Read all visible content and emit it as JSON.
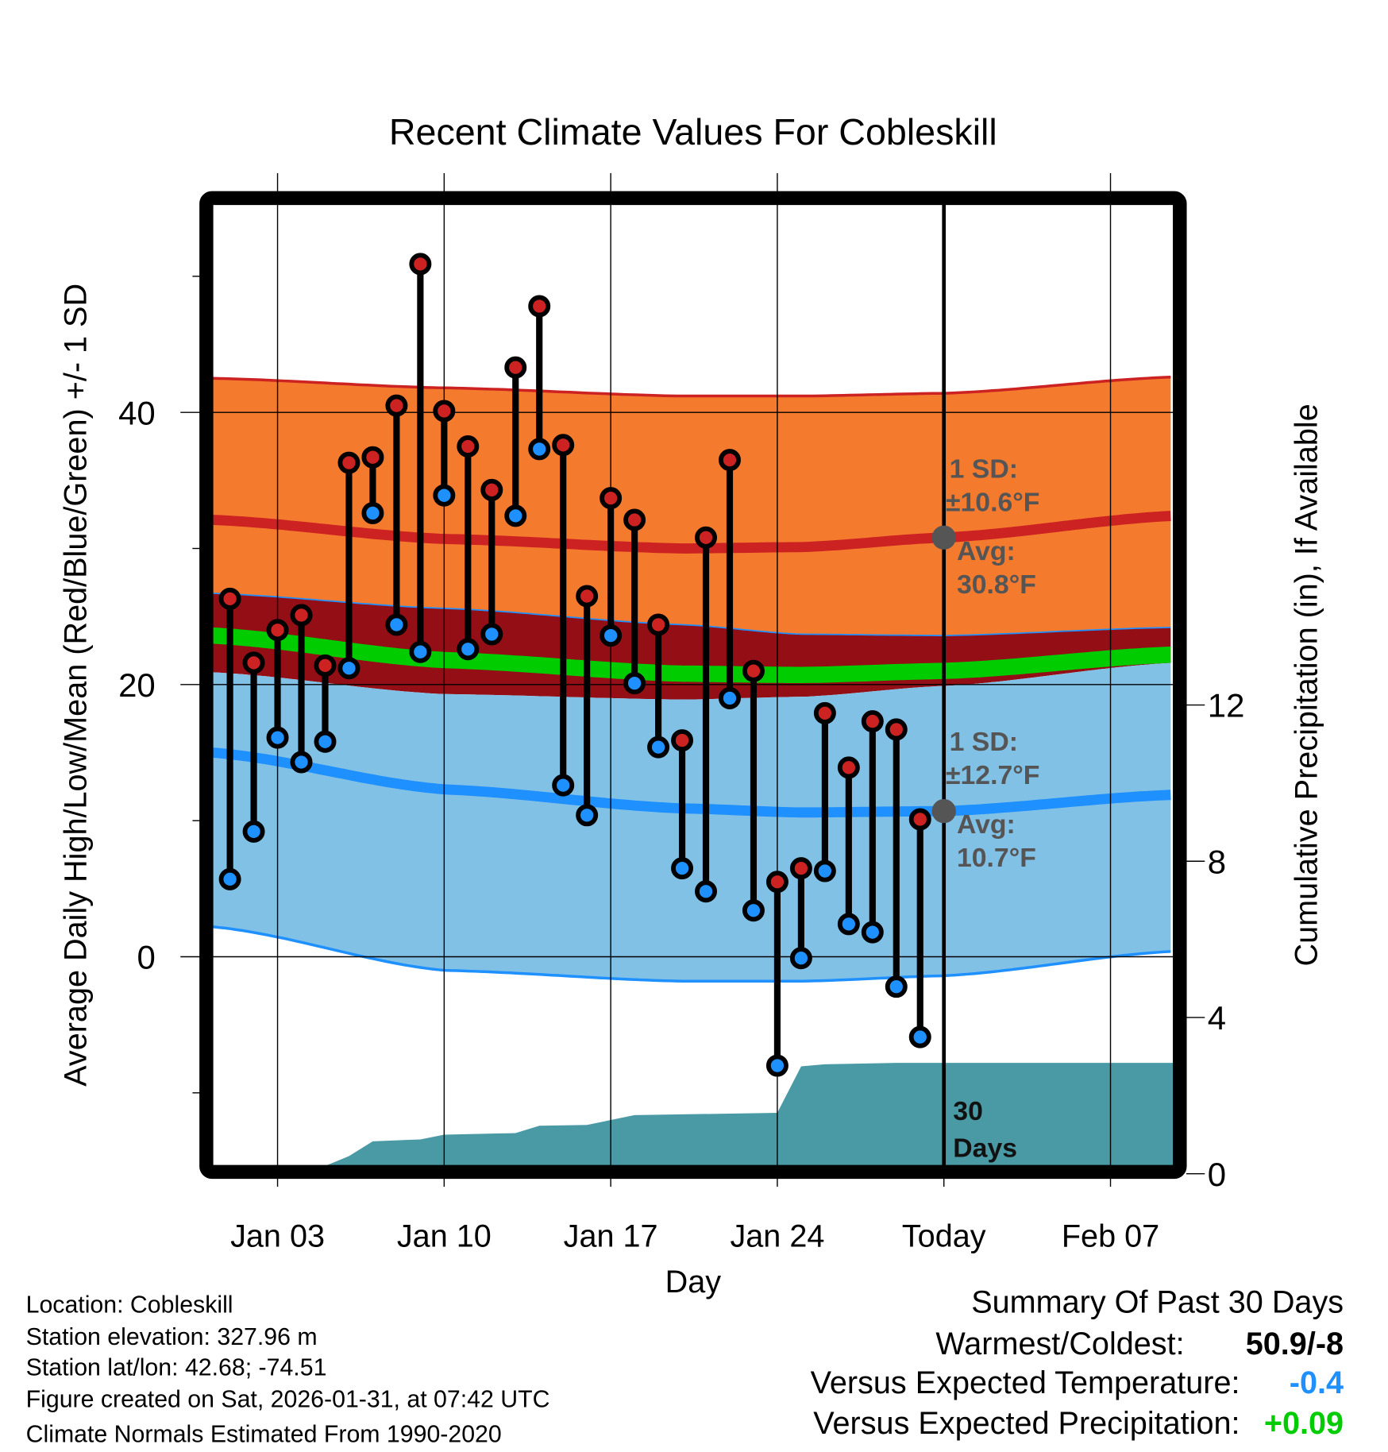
{
  "chart_data": {
    "type": "line",
    "title": "Recent Climate Values For Cobleskill",
    "xlabel": "Day",
    "ylabel": "Average Daily High/Low/Mean (Red/Blue/Green) +/- 1 SD",
    "y2label": "Cumulative Precipitation (in), If Available",
    "x_units": "day of January (Feb 7 = 38)",
    "xlim": [
      0.28,
      40.64
    ],
    "ylim": [
      -15.4,
      55.2
    ],
    "y2lim": [
      0,
      24.6
    ],
    "x_ticks": [
      {
        "x": 3,
        "label": "Jan 03"
      },
      {
        "x": 10,
        "label": "Jan 10"
      },
      {
        "x": 17,
        "label": "Jan 17"
      },
      {
        "x": 24,
        "label": "Jan 24"
      },
      {
        "x": 31,
        "label": "Today"
      },
      {
        "x": 38,
        "label": "Feb 07"
      }
    ],
    "y_ticks": [
      {
        "v": 40,
        "label": "40"
      },
      {
        "v": 20,
        "label": "20"
      },
      {
        "v": 0,
        "label": "0"
      }
    ],
    "y_minor_ticks": [
      50,
      30,
      10,
      -10
    ],
    "y2_ticks": [
      {
        "v": 0,
        "label": "0"
      },
      {
        "v": 4,
        "label": "4"
      },
      {
        "v": 8,
        "label": "8"
      },
      {
        "v": 12,
        "label": "12"
      }
    ],
    "grid": true,
    "today": 31,
    "observations": {
      "days": [
        1,
        2,
        3,
        4,
        5,
        6,
        7,
        8,
        9,
        10,
        11,
        12,
        13,
        14,
        15,
        16,
        17,
        18,
        19,
        20,
        21,
        22,
        23,
        24,
        25,
        26,
        27,
        28,
        29,
        30
      ],
      "high": [
        26.3,
        21.6,
        24.0,
        25.1,
        21.4,
        36.3,
        36.7,
        40.5,
        50.9,
        40.1,
        37.5,
        34.3,
        43.3,
        47.8,
        37.6,
        26.5,
        33.7,
        32.1,
        24.4,
        15.9,
        30.8,
        36.5,
        21.0,
        5.5,
        6.5,
        17.9,
        13.9,
        17.3,
        16.7,
        10.1
      ],
      "low": [
        5.7,
        9.2,
        16.1,
        14.3,
        15.8,
        21.2,
        32.6,
        24.4,
        22.4,
        33.9,
        22.6,
        23.7,
        32.4,
        37.3,
        12.6,
        10.4,
        23.6,
        20.1,
        15.4,
        6.5,
        4.8,
        19.0,
        3.4,
        -8.0,
        -0.1,
        6.3,
        2.4,
        1.8,
        -2.2,
        -5.9
      ]
    },
    "normals": {
      "days": [
        0.28,
        10,
        20,
        25,
        31,
        40.64
      ],
      "high_upper": [
        42.5,
        41.8,
        41.2,
        41.2,
        41.4,
        42.6
      ],
      "high_avg": [
        32.1,
        30.7,
        30.0,
        30.1,
        30.8,
        32.4
      ],
      "high_lower": [
        26.7,
        25.6,
        24.4,
        23.7,
        23.6,
        24.2
      ],
      "mean": [
        23.6,
        21.8,
        20.8,
        20.7,
        21.0,
        22.2
      ],
      "low_upper": [
        20.9,
        19.3,
        18.9,
        19.1,
        19.9,
        21.6
      ],
      "low_avg": [
        15.0,
        12.3,
        10.9,
        10.6,
        10.7,
        11.9
      ],
      "low_lower": [
        2.2,
        -1.0,
        -1.8,
        -1.8,
        -1.4,
        0.4
      ]
    },
    "precip_cumulative": {
      "days": [
        0.28,
        3.5,
        5,
        6,
        7,
        9,
        10,
        13,
        14,
        16,
        18,
        24,
        25,
        26,
        29,
        40.64
      ],
      "inches": [
        0,
        0,
        0.2,
        0.45,
        0.83,
        0.88,
        1.0,
        1.04,
        1.23,
        1.25,
        1.5,
        1.56,
        2.75,
        2.8,
        2.84,
        2.84
      ]
    },
    "annotations": {
      "high_sd_label": "1 SD:",
      "high_sd_value": "±10.6°F",
      "high_avg_label": "Avg:",
      "high_avg_value": "30.8°F",
      "low_sd_label": "1 SD:",
      "low_sd_value": "±12.7°F",
      "low_avg_label": "Avg:",
      "low_avg_value": "10.7°F",
      "window_num": "30",
      "window_unit": "Days"
    },
    "colors": {
      "high_band": "#F47A2E",
      "overlap_band": "#930E15",
      "mean": "#00CC00",
      "low_band": "#82C1E6",
      "high_line": "#CC2222",
      "low_line": "#1E90FF",
      "precip": "#4A9AA5",
      "avg_dot": "#555555"
    }
  },
  "footer": {
    "location": "Location: Cobleskill",
    "elevation": "Station elevation: 327.96 m",
    "latlon": "Station lat/lon: 42.68; -74.51",
    "created": "Figure created on Sat, 2026-01-31, at 07:42 UTC",
    "normals": "Climate Normals Estimated From 1990-2020"
  },
  "summary": {
    "title": "Summary Of Past 30 Days",
    "warmest_label": "Warmest/Coldest:",
    "warmest_value": "50.9/-8",
    "temp_label": "Versus Expected Temperature:",
    "temp_value": "-0.4",
    "temp_color": "#1E90FF",
    "precip_label": "Versus Expected Precipitation:",
    "precip_value": "+0.09",
    "precip_color": "#00CC00"
  }
}
